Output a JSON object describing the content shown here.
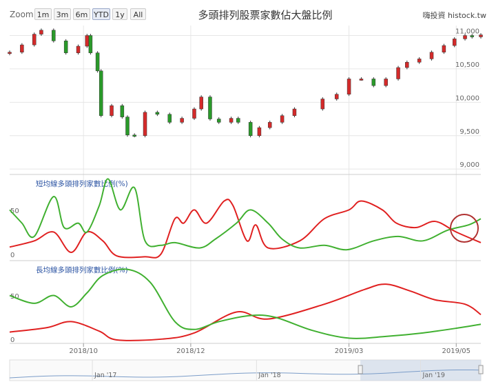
{
  "toolbar": {
    "zoom_label": "Zoom",
    "buttons": [
      "1m",
      "3m",
      "6m",
      "YTD",
      "1y",
      "All"
    ],
    "active": "YTD"
  },
  "header": {
    "title": "多頭排列股票家數佔大盤比例",
    "credit": "嗨投資  histock.tw"
  },
  "colors": {
    "up": "#d42a2a",
    "down": "#2a9a2a",
    "red_line": "#e02020",
    "green_line": "#40b030",
    "grid": "#e6e6e6",
    "navigator_fill": "#c9d6e6"
  },
  "chart_data": [
    {
      "type": "candlestick",
      "title": "",
      "yticks": [
        9000,
        9500,
        10000,
        10500,
        11000
      ],
      "yticklabels": [
        "9,000",
        "9,500",
        "10,000",
        "10,500",
        "11,000"
      ],
      "ylim": [
        8950,
        11150
      ],
      "x_range": [
        "2018-08-20",
        "2019-05-15"
      ],
      "closes": [
        {
          "x": "2018-08-20",
          "y": 10750
        },
        {
          "x": "2018-08-27",
          "y": 10860
        },
        {
          "x": "2018-09-03",
          "y": 11020
        },
        {
          "x": "2018-09-07",
          "y": 11080
        },
        {
          "x": "2018-09-14",
          "y": 10920
        },
        {
          "x": "2018-09-21",
          "y": 10740
        },
        {
          "x": "2018-09-28",
          "y": 10840
        },
        {
          "x": "2018-10-03",
          "y": 11000
        },
        {
          "x": "2018-10-05",
          "y": 10740
        },
        {
          "x": "2018-10-09",
          "y": 10470
        },
        {
          "x": "2018-10-11",
          "y": 9800
        },
        {
          "x": "2018-10-17",
          "y": 9950
        },
        {
          "x": "2018-10-23",
          "y": 9780
        },
        {
          "x": "2018-10-26",
          "y": 9510
        },
        {
          "x": "2018-10-30",
          "y": 9500
        },
        {
          "x": "2018-11-05",
          "y": 9850
        },
        {
          "x": "2018-11-12",
          "y": 9820
        },
        {
          "x": "2018-11-19",
          "y": 9700
        },
        {
          "x": "2018-11-26",
          "y": 9760
        },
        {
          "x": "2018-12-03",
          "y": 9900
        },
        {
          "x": "2018-12-07",
          "y": 10080
        },
        {
          "x": "2018-12-12",
          "y": 9750
        },
        {
          "x": "2018-12-17",
          "y": 9700
        },
        {
          "x": "2018-12-24",
          "y": 9760
        },
        {
          "x": "2018-12-28",
          "y": 9700
        },
        {
          "x": "2019-01-04",
          "y": 9500
        },
        {
          "x": "2019-01-09",
          "y": 9620
        },
        {
          "x": "2019-01-15",
          "y": 9700
        },
        {
          "x": "2019-01-22",
          "y": 9800
        },
        {
          "x": "2019-01-29",
          "y": 9900
        },
        {
          "x": "2019-02-14",
          "y": 10050
        },
        {
          "x": "2019-02-22",
          "y": 10120
        },
        {
          "x": "2019-03-01",
          "y": 10350
        },
        {
          "x": "2019-03-08",
          "y": 10350
        },
        {
          "x": "2019-03-15",
          "y": 10250
        },
        {
          "x": "2019-03-22",
          "y": 10350
        },
        {
          "x": "2019-03-29",
          "y": 10520
        },
        {
          "x": "2019-04-03",
          "y": 10600
        },
        {
          "x": "2019-04-10",
          "y": 10650
        },
        {
          "x": "2019-04-17",
          "y": 10750
        },
        {
          "x": "2019-04-24",
          "y": 10850
        },
        {
          "x": "2019-04-30",
          "y": 10950
        },
        {
          "x": "2019-05-06",
          "y": 11000
        },
        {
          "x": "2019-05-10",
          "y": 10980
        },
        {
          "x": "2019-05-15",
          "y": 11010
        }
      ]
    },
    {
      "type": "line",
      "title": "短均線多頭排列家數比例(%)",
      "yticks": [
        0,
        50
      ],
      "ylim": [
        0,
        95
      ],
      "series": [
        {
          "color": "#e02020",
          "points": [
            {
              "x": "2018-08-20",
              "y": 13
            },
            {
              "x": "2018-09-03",
              "y": 20
            },
            {
              "x": "2018-09-14",
              "y": 30
            },
            {
              "x": "2018-09-24",
              "y": 7
            },
            {
              "x": "2018-10-03",
              "y": 30
            },
            {
              "x": "2018-10-12",
              "y": 20
            },
            {
              "x": "2018-10-20",
              "y": 3
            },
            {
              "x": "2018-11-05",
              "y": 2
            },
            {
              "x": "2018-11-14",
              "y": 5
            },
            {
              "x": "2018-11-22",
              "y": 45
            },
            {
              "x": "2018-11-27",
              "y": 40
            },
            {
              "x": "2018-12-03",
              "y": 55
            },
            {
              "x": "2018-12-10",
              "y": 40
            },
            {
              "x": "2018-12-20",
              "y": 65
            },
            {
              "x": "2018-12-25",
              "y": 60
            },
            {
              "x": "2019-01-02",
              "y": 20
            },
            {
              "x": "2019-01-07",
              "y": 38
            },
            {
              "x": "2019-01-14",
              "y": 12
            },
            {
              "x": "2019-02-01",
              "y": 20
            },
            {
              "x": "2019-02-15",
              "y": 45
            },
            {
              "x": "2019-03-01",
              "y": 55
            },
            {
              "x": "2019-03-08",
              "y": 65
            },
            {
              "x": "2019-03-20",
              "y": 55
            },
            {
              "x": "2019-03-28",
              "y": 40
            },
            {
              "x": "2019-04-08",
              "y": 35
            },
            {
              "x": "2019-04-19",
              "y": 42
            },
            {
              "x": "2019-05-01",
              "y": 30
            },
            {
              "x": "2019-05-15",
              "y": 18
            }
          ]
        },
        {
          "color": "#40b030",
          "points": [
            {
              "x": "2018-08-20",
              "y": 55
            },
            {
              "x": "2018-08-27",
              "y": 40
            },
            {
              "x": "2018-09-03",
              "y": 25
            },
            {
              "x": "2018-09-14",
              "y": 70
            },
            {
              "x": "2018-09-20",
              "y": 35
            },
            {
              "x": "2018-09-28",
              "y": 40
            },
            {
              "x": "2018-10-03",
              "y": 30
            },
            {
              "x": "2018-10-10",
              "y": 60
            },
            {
              "x": "2018-10-15",
              "y": 90
            },
            {
              "x": "2018-10-22",
              "y": 55
            },
            {
              "x": "2018-10-30",
              "y": 80
            },
            {
              "x": "2018-11-05",
              "y": 20
            },
            {
              "x": "2018-11-14",
              "y": 15
            },
            {
              "x": "2018-11-22",
              "y": 18
            },
            {
              "x": "2018-12-06",
              "y": 12
            },
            {
              "x": "2018-12-15",
              "y": 22
            },
            {
              "x": "2018-12-27",
              "y": 40
            },
            {
              "x": "2019-01-04",
              "y": 55
            },
            {
              "x": "2019-01-14",
              "y": 40
            },
            {
              "x": "2019-01-22",
              "y": 22
            },
            {
              "x": "2019-02-01",
              "y": 12
            },
            {
              "x": "2019-02-15",
              "y": 15
            },
            {
              "x": "2019-02-28",
              "y": 10
            },
            {
              "x": "2019-03-15",
              "y": 20
            },
            {
              "x": "2019-03-29",
              "y": 25
            },
            {
              "x": "2019-04-12",
              "y": 20
            },
            {
              "x": "2019-04-26",
              "y": 32
            },
            {
              "x": "2019-05-08",
              "y": 38
            },
            {
              "x": "2019-05-15",
              "y": 45
            }
          ]
        }
      ]
    },
    {
      "type": "line",
      "title": "長均線多頭排列家數比例(%)",
      "yticks": [
        0,
        50
      ],
      "ylim": [
        0,
        95
      ],
      "series": [
        {
          "color": "#e02020",
          "points": [
            {
              "x": "2018-08-20",
              "y": 13
            },
            {
              "x": "2018-09-10",
              "y": 18
            },
            {
              "x": "2018-09-24",
              "y": 25
            },
            {
              "x": "2018-10-10",
              "y": 14
            },
            {
              "x": "2018-10-20",
              "y": 4
            },
            {
              "x": "2018-11-15",
              "y": 5
            },
            {
              "x": "2018-12-03",
              "y": 12
            },
            {
              "x": "2018-12-27",
              "y": 36
            },
            {
              "x": "2019-01-14",
              "y": 28
            },
            {
              "x": "2019-02-15",
              "y": 45
            },
            {
              "x": "2019-03-10",
              "y": 62
            },
            {
              "x": "2019-03-22",
              "y": 68
            },
            {
              "x": "2019-04-05",
              "y": 60
            },
            {
              "x": "2019-04-19",
              "y": 50
            },
            {
              "x": "2019-05-06",
              "y": 45
            },
            {
              "x": "2019-05-15",
              "y": 33
            }
          ]
        },
        {
          "color": "#40b030",
          "points": [
            {
              "x": "2018-08-20",
              "y": 55
            },
            {
              "x": "2018-09-03",
              "y": 46
            },
            {
              "x": "2018-09-14",
              "y": 55
            },
            {
              "x": "2018-09-24",
              "y": 42
            },
            {
              "x": "2018-10-03",
              "y": 58
            },
            {
              "x": "2018-10-12",
              "y": 78
            },
            {
              "x": "2018-10-26",
              "y": 85
            },
            {
              "x": "2018-11-08",
              "y": 70
            },
            {
              "x": "2018-11-22",
              "y": 25
            },
            {
              "x": "2018-12-03",
              "y": 16
            },
            {
              "x": "2018-12-17",
              "y": 25
            },
            {
              "x": "2019-01-04",
              "y": 32
            },
            {
              "x": "2019-01-18",
              "y": 30
            },
            {
              "x": "2019-02-08",
              "y": 15
            },
            {
              "x": "2019-03-01",
              "y": 6
            },
            {
              "x": "2019-03-22",
              "y": 8
            },
            {
              "x": "2019-04-12",
              "y": 12
            },
            {
              "x": "2019-05-03",
              "y": 18
            },
            {
              "x": "2019-05-15",
              "y": 22
            }
          ]
        }
      ]
    }
  ],
  "x_axis": {
    "ticks": [
      {
        "x": "2018-10-01",
        "label": "2018/10"
      },
      {
        "x": "2018-12-01",
        "label": "2018/12"
      },
      {
        "x": "2019-03-01",
        "label": "2019/03"
      },
      {
        "x": "2019-05-01",
        "label": "2019/05"
      }
    ]
  },
  "navigator": {
    "x_range": [
      "2016-07-01",
      "2019-05-15"
    ],
    "labels": [
      {
        "x": "2017-01-01",
        "label": "Jan '17"
      },
      {
        "x": "2018-01-01",
        "label": "Jan '18"
      },
      {
        "x": "2019-01-01",
        "label": "Jan '19"
      }
    ],
    "selected": [
      "2018-08-20",
      "2019-05-15"
    ]
  }
}
